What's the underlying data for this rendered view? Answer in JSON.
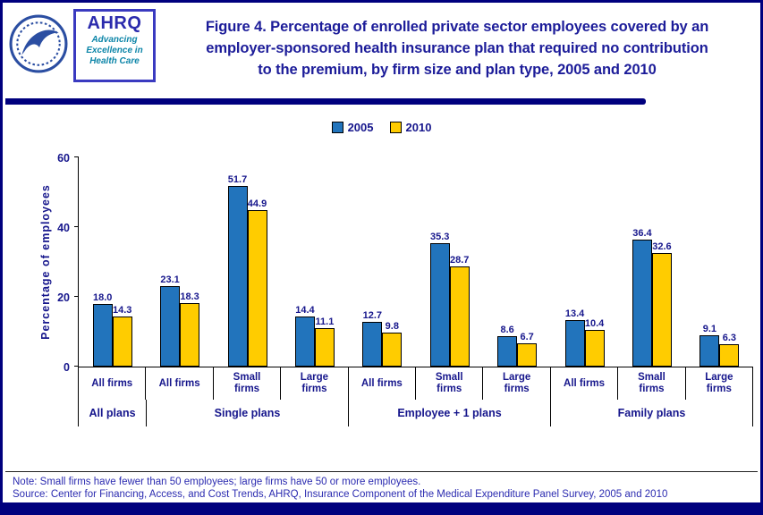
{
  "header": {
    "title_line1": "Figure 4. Percentage of enrolled private sector employees covered by an",
    "title_line2": "employer-sponsored health insurance plan that required no contribution",
    "title_line3": "to the premium, by firm size and plan type, 2005 and 2010"
  },
  "logos": {
    "ahrq_acronym": "AHRQ",
    "ahrq_tagline_line1": "Advancing",
    "ahrq_tagline_line2": "Excellence in",
    "ahrq_tagline_line3": "Health Care"
  },
  "colors": {
    "navy_accent": "#00007E",
    "title_text": "#1C1C99",
    "axis_text": "#16168C",
    "series_2005": "#2274BC",
    "series_2010": "#FFCC00"
  },
  "chart_data": {
    "type": "bar",
    "title": "Figure 4. Percentage of enrolled private sector employees covered by an employer-sponsored health insurance plan that required no contribution to the premium, by firm size and plan type, 2005 and 2010",
    "ylabel": "Percentage of employees",
    "xlabel": "",
    "ylim": [
      0,
      60
    ],
    "yticks": [
      0,
      20,
      40,
      60
    ],
    "grid": false,
    "legend_position": "top-center",
    "categories": [
      "All firms",
      "All firms",
      "Small firms",
      "Large firms",
      "All firms",
      "Small firms",
      "Large firms",
      "All firms",
      "Small firms",
      "Large firms"
    ],
    "group_labels": [
      {
        "label": "All plans",
        "span": 1
      },
      {
        "label": "Single plans",
        "span": 3
      },
      {
        "label": "Employee + 1 plans",
        "span": 3
      },
      {
        "label": "Family plans",
        "span": 3
      }
    ],
    "series": [
      {
        "name": "2005",
        "color": "#2274BC",
        "values": [
          18.0,
          23.1,
          51.7,
          14.4,
          12.7,
          35.3,
          8.6,
          13.4,
          36.4,
          9.1
        ]
      },
      {
        "name": "2010",
        "color": "#FFCC00",
        "values": [
          14.3,
          18.3,
          44.9,
          11.1,
          9.8,
          28.7,
          6.7,
          10.4,
          32.6,
          6.3
        ]
      }
    ]
  },
  "notes": {
    "note": "Note: Small firms have fewer than 50 employees; large firms have 50 or more employees.",
    "source": "Source: Center for Financing, Access, and Cost Trends, AHRQ, Insurance Component of the Medical Expenditure Panel Survey, 2005 and 2010"
  }
}
